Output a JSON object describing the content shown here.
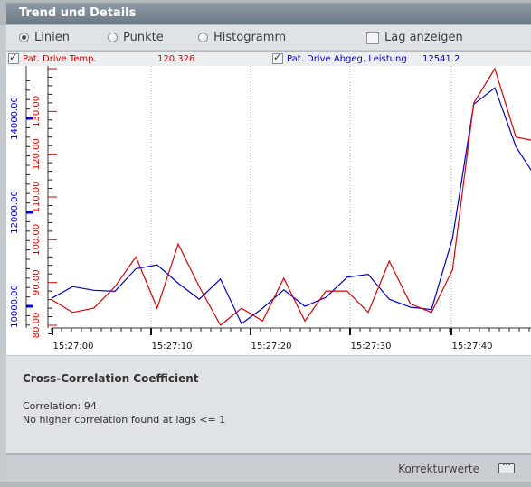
{
  "window": {
    "title": "Trend und Details"
  },
  "view_options": {
    "modes": [
      {
        "label": "Linien",
        "selected": true
      },
      {
        "label": "Punkte",
        "selected": false
      },
      {
        "label": "Histogramm",
        "selected": false
      }
    ],
    "lag_checkbox": {
      "label": "Lag anzeigen",
      "checked": false
    }
  },
  "legend": {
    "series1": {
      "label": "Pat. Drive Temp.",
      "value": "120.326",
      "checked": true,
      "color": "#e00000"
    },
    "series2": {
      "label": "Pat. Drive Abgeg. Leistung",
      "value": "12541.2",
      "checked": true,
      "color": "#0000d8"
    }
  },
  "chart_data": {
    "type": "line",
    "x_ticks": [
      "15:27:00",
      "15:27:10",
      "15:27:20",
      "15:27:30",
      "15:27:40"
    ],
    "y_left_red": {
      "ticks": [
        "80.00",
        "90.00",
        "100.00",
        "110.00",
        "120.00",
        "130.00"
      ],
      "color": "#e00000"
    },
    "y_left_blue": {
      "ticks": [
        "10000.00",
        "12000.00",
        "14000.00"
      ],
      "color": "#0000d8"
    },
    "series": [
      {
        "axis": "red",
        "values": [
          86,
          83,
          84,
          89,
          96,
          84,
          99,
          89,
          80,
          84,
          81,
          91,
          81,
          88,
          88,
          83,
          95,
          85,
          83,
          93,
          132,
          140,
          124,
          123,
          118
        ]
      },
      {
        "axis": "blue",
        "values": [
          10170,
          10420,
          10340,
          10320,
          10800,
          10880,
          10490,
          10150,
          10580,
          9630,
          9960,
          10350,
          10000,
          10190,
          10620,
          10680,
          10150,
          9980,
          9930,
          11450,
          14300,
          14650,
          13400,
          12700,
          12200
        ]
      }
    ],
    "grid": "vertical-dotted"
  },
  "info": {
    "heading": "Cross-Correlation Coefficient",
    "correlation": "Correlation: 94",
    "note": "No higher correlation found at lags <= 1"
  },
  "footer": {
    "link_label": "Korrekturwerte",
    "more_label": "···"
  }
}
